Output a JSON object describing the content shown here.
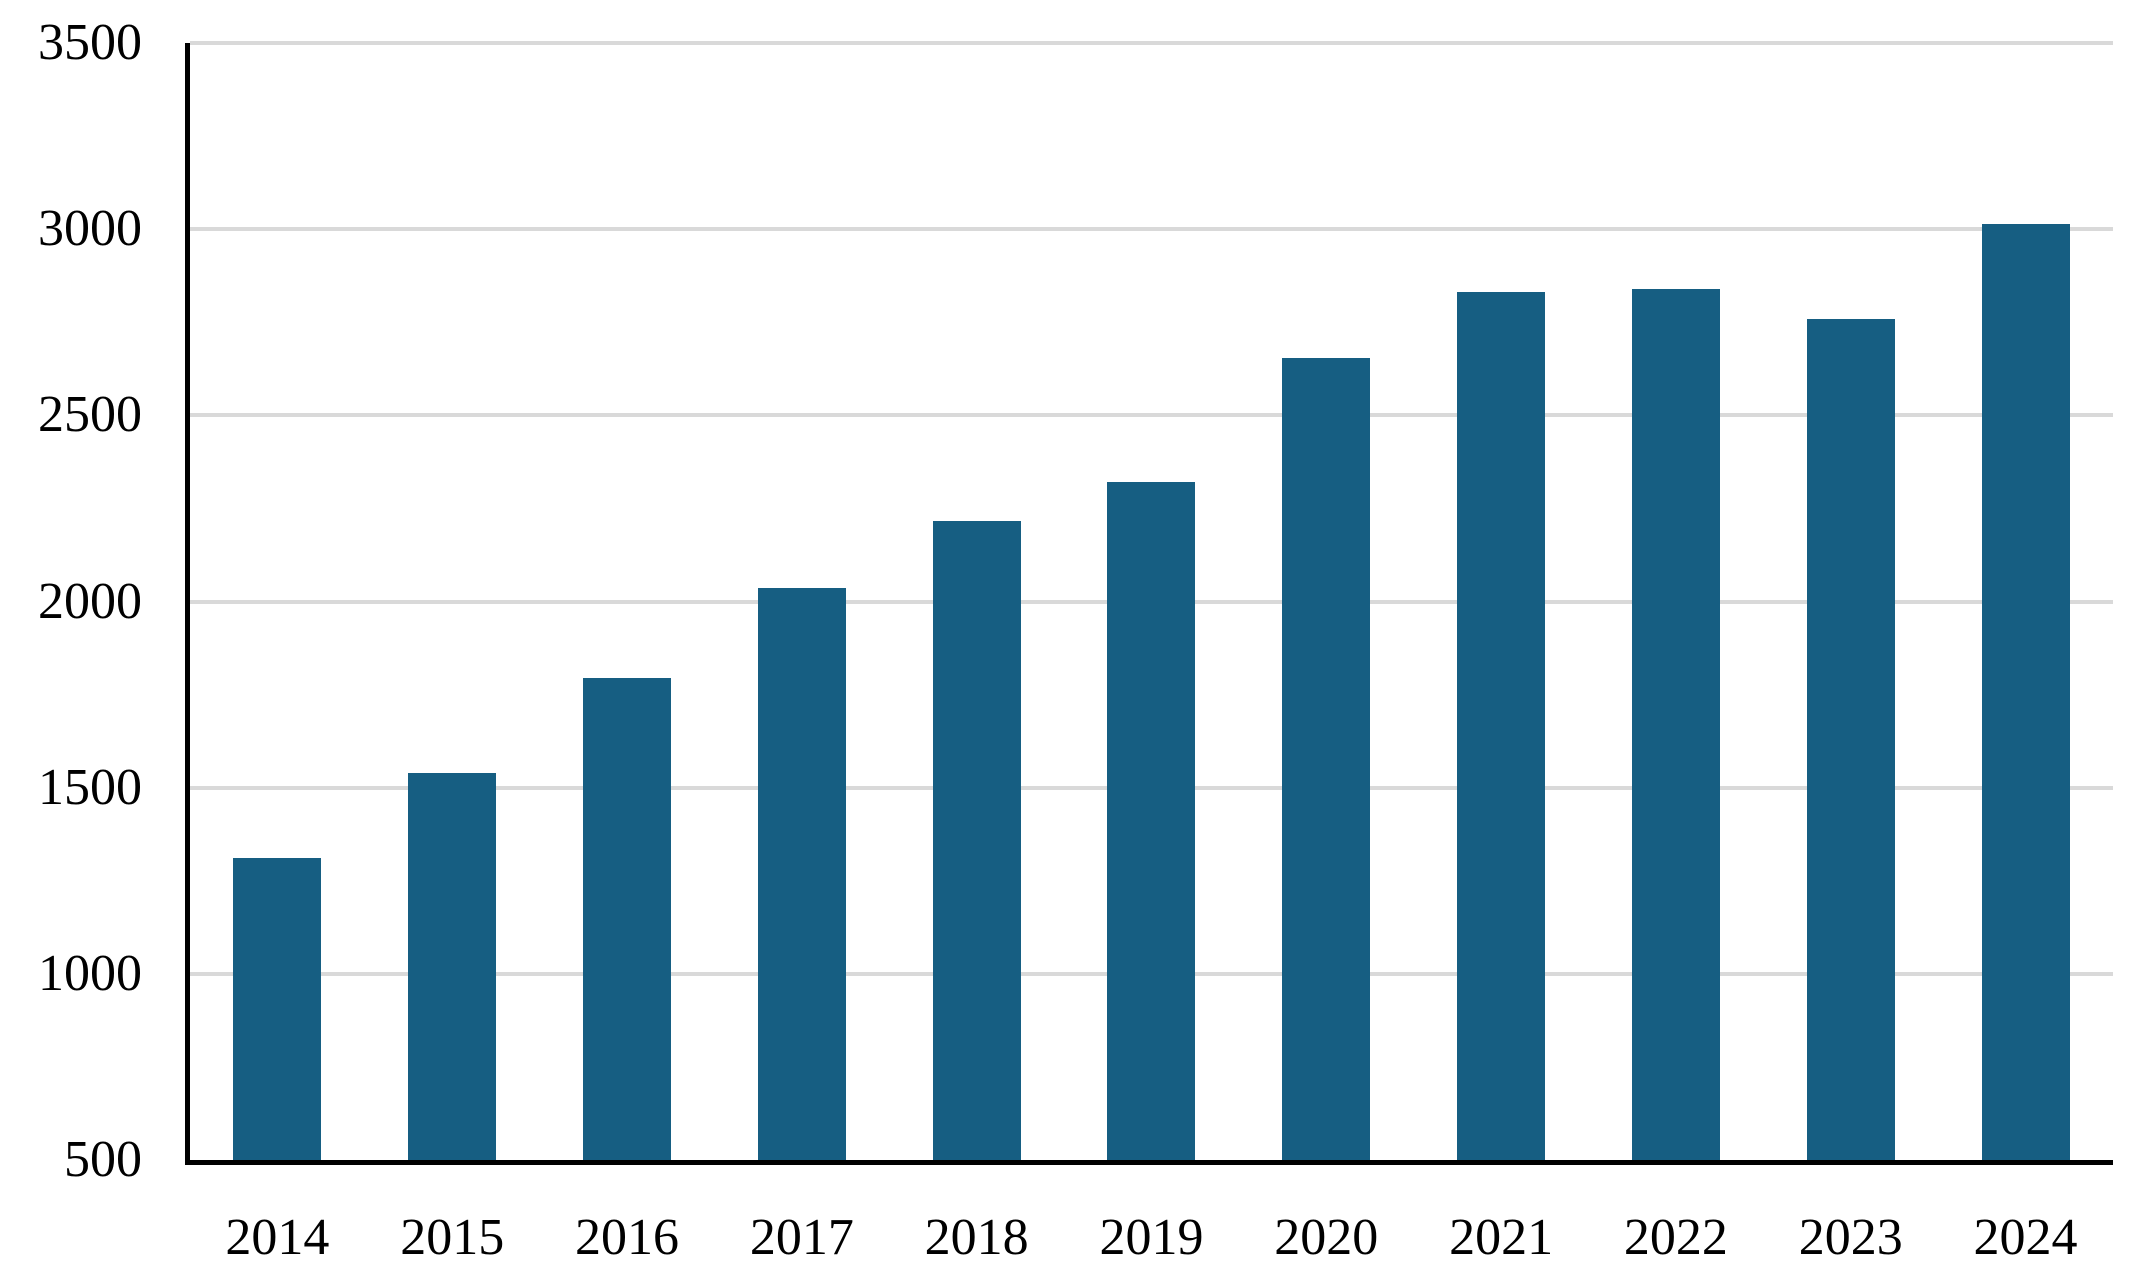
{
  "chart_data": {
    "type": "bar",
    "title": "",
    "xlabel": "",
    "ylabel": "",
    "categories": [
      "2014",
      "2015",
      "2016",
      "2017",
      "2018",
      "2019",
      "2020",
      "2021",
      "2022",
      "2023",
      "2024"
    ],
    "values": [
      1310,
      1540,
      1795,
      2035,
      2215,
      2320,
      2655,
      2830,
      2840,
      2760,
      3015
    ],
    "ylim": [
      500,
      3500
    ],
    "yticks": [
      500,
      1000,
      1500,
      2000,
      2500,
      3000,
      3500
    ],
    "ytick_labels": [
      "500",
      "1000",
      "1500",
      "2000",
      "2500",
      "3000",
      "3500"
    ],
    "grid": "horizontal",
    "legend_position": "none",
    "colors": {
      "bar": "#165E82",
      "gridline": "#D9D9D9",
      "axis": "#000000",
      "text": "#000000",
      "background": "#FFFFFF"
    }
  }
}
